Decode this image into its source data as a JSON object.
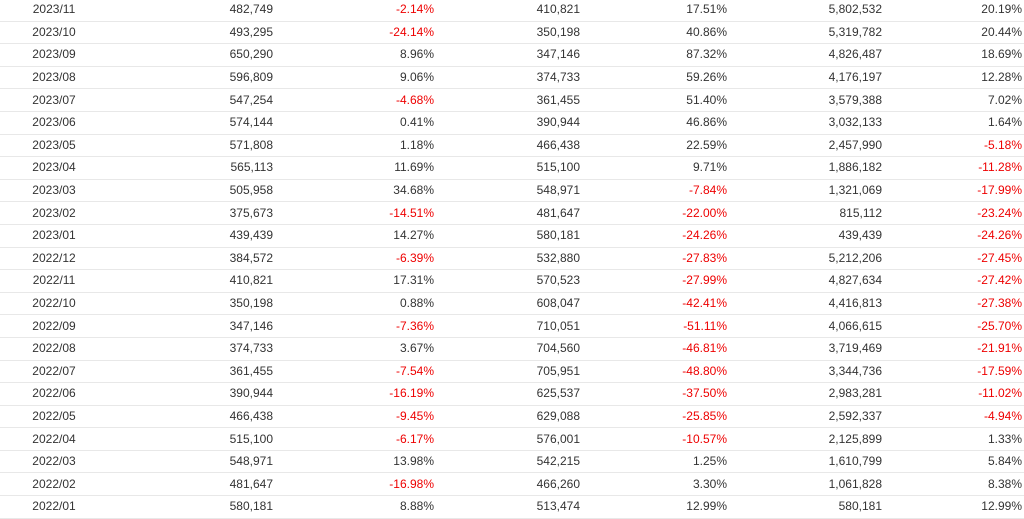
{
  "table": {
    "rows": [
      [
        "2023/11",
        "482,749",
        "-2.14%",
        "410,821",
        "17.51%",
        "5,802,532",
        "20.19%"
      ],
      [
        "2023/10",
        "493,295",
        "-24.14%",
        "350,198",
        "40.86%",
        "5,319,782",
        "20.44%"
      ],
      [
        "2023/09",
        "650,290",
        "8.96%",
        "347,146",
        "87.32%",
        "4,826,487",
        "18.69%"
      ],
      [
        "2023/08",
        "596,809",
        "9.06%",
        "374,733",
        "59.26%",
        "4,176,197",
        "12.28%"
      ],
      [
        "2023/07",
        "547,254",
        "-4.68%",
        "361,455",
        "51.40%",
        "3,579,388",
        "7.02%"
      ],
      [
        "2023/06",
        "574,144",
        "0.41%",
        "390,944",
        "46.86%",
        "3,032,133",
        "1.64%"
      ],
      [
        "2023/05",
        "571,808",
        "1.18%",
        "466,438",
        "22.59%",
        "2,457,990",
        "-5.18%"
      ],
      [
        "2023/04",
        "565,113",
        "11.69%",
        "515,100",
        "9.71%",
        "1,886,182",
        "-11.28%"
      ],
      [
        "2023/03",
        "505,958",
        "34.68%",
        "548,971",
        "-7.84%",
        "1,321,069",
        "-17.99%"
      ],
      [
        "2023/02",
        "375,673",
        "-14.51%",
        "481,647",
        "-22.00%",
        "815,112",
        "-23.24%"
      ],
      [
        "2023/01",
        "439,439",
        "14.27%",
        "580,181",
        "-24.26%",
        "439,439",
        "-24.26%"
      ],
      [
        "2022/12",
        "384,572",
        "-6.39%",
        "532,880",
        "-27.83%",
        "5,212,206",
        "-27.45%"
      ],
      [
        "2022/11",
        "410,821",
        "17.31%",
        "570,523",
        "-27.99%",
        "4,827,634",
        "-27.42%"
      ],
      [
        "2022/10",
        "350,198",
        "0.88%",
        "608,047",
        "-42.41%",
        "4,416,813",
        "-27.38%"
      ],
      [
        "2022/09",
        "347,146",
        "-7.36%",
        "710,051",
        "-51.11%",
        "4,066,615",
        "-25.70%"
      ],
      [
        "2022/08",
        "374,733",
        "3.67%",
        "704,560",
        "-46.81%",
        "3,719,469",
        "-21.91%"
      ],
      [
        "2022/07",
        "361,455",
        "-7.54%",
        "705,951",
        "-48.80%",
        "3,344,736",
        "-17.59%"
      ],
      [
        "2022/06",
        "390,944",
        "-16.19%",
        "625,537",
        "-37.50%",
        "2,983,281",
        "-11.02%"
      ],
      [
        "2022/05",
        "466,438",
        "-9.45%",
        "629,088",
        "-25.85%",
        "2,592,337",
        "-4.94%"
      ],
      [
        "2022/04",
        "515,100",
        "-6.17%",
        "576,001",
        "-10.57%",
        "2,125,899",
        "1.33%"
      ],
      [
        "2022/03",
        "548,971",
        "13.98%",
        "542,215",
        "1.25%",
        "1,610,799",
        "5.84%"
      ],
      [
        "2022/02",
        "481,647",
        "-16.98%",
        "466,260",
        "3.30%",
        "1,061,828",
        "8.38%"
      ],
      [
        "2022/01",
        "580,181",
        "8.88%",
        "513,474",
        "12.99%",
        "580,181",
        "12.99%"
      ]
    ]
  },
  "colors": {
    "text": "#333333",
    "negative": "#ee0000",
    "row_border": "#e8e8e8"
  }
}
